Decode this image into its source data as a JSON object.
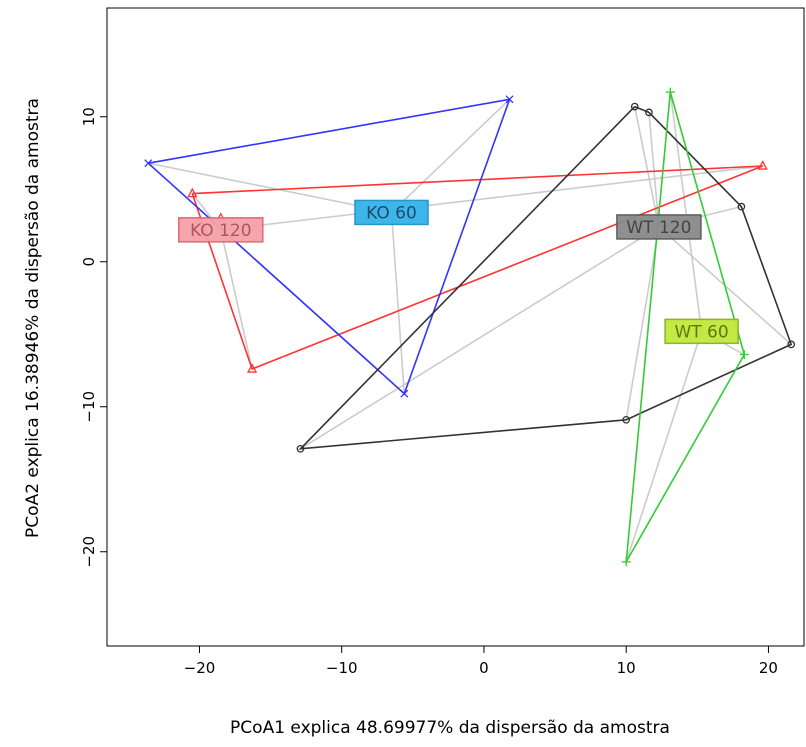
{
  "chart_data": {
    "type": "scatter",
    "title": "",
    "xlabel": "PCoA1 explica 48.69977% da dispersão da amostra",
    "ylabel": "PCoA2 explica 16.38946% da dispersão da amostra",
    "xlim": [
      -26.5,
      22.5
    ],
    "ylim": [
      -26.5,
      17.5
    ],
    "xticks": [
      -20,
      -10,
      0,
      10,
      20
    ],
    "yticks": [
      -20,
      -10,
      0,
      10
    ],
    "xtick_labels": [
      "−20",
      "−10",
      "0",
      "10",
      "20"
    ],
    "ytick_labels": [
      "−20",
      "−10",
      "0",
      "10"
    ],
    "grid": false,
    "series": [
      {
        "name": "KO 120",
        "color": "#ff3333",
        "marker": "triangle",
        "centroid": [
          -18.5,
          2.2
        ],
        "points": [
          [
            -20.5,
            4.7
          ],
          [
            -18.5,
            3.0
          ],
          [
            -16.3,
            -7.4
          ],
          [
            19.6,
            6.6
          ]
        ],
        "hull": [
          [
            -20.5,
            4.7
          ],
          [
            19.6,
            6.6
          ],
          [
            -16.3,
            -7.4
          ],
          [
            -20.5,
            4.7
          ]
        ],
        "label_fill": "#f4a2a8",
        "label_border": "#e06070",
        "label_text_color": "#b05560"
      },
      {
        "name": "KO 60",
        "color": "#3333ff",
        "marker": "x",
        "centroid": [
          -6.5,
          3.4
        ],
        "points": [
          [
            -23.6,
            6.8
          ],
          [
            1.8,
            11.2
          ],
          [
            -5.6,
            -9.1
          ]
        ],
        "hull": [
          [
            -23.6,
            6.8
          ],
          [
            1.8,
            11.2
          ],
          [
            -5.6,
            -9.1
          ],
          [
            -23.6,
            6.8
          ]
        ],
        "label_fill": "#33b4e8",
        "label_border": "#1a90c8",
        "label_text_color": "#1e4a70"
      },
      {
        "name": "WT 120",
        "color": "#333333",
        "marker": "circle",
        "centroid": [
          12.3,
          2.4
        ],
        "points": [
          [
            10.6,
            10.7
          ],
          [
            11.6,
            10.3
          ],
          [
            18.1,
            3.8
          ],
          [
            21.6,
            -5.7
          ],
          [
            10.0,
            -10.9
          ],
          [
            -12.9,
            -12.9
          ]
        ],
        "hull": [
          [
            10.6,
            10.7
          ],
          [
            11.6,
            10.3
          ],
          [
            18.1,
            3.8
          ],
          [
            21.6,
            -5.7
          ],
          [
            10.0,
            -10.9
          ],
          [
            -12.9,
            -12.9
          ],
          [
            10.6,
            10.7
          ]
        ],
        "label_fill": "#8a8a8a",
        "label_border": "#555555",
        "label_text_color": "#444444"
      },
      {
        "name": "WT 60",
        "color": "#33cc33",
        "marker": "plus",
        "centroid": [
          15.3,
          -4.8
        ],
        "points": [
          [
            13.1,
            11.7
          ],
          [
            18.3,
            -6.4
          ],
          [
            10.0,
            -20.7
          ]
        ],
        "hull": [
          [
            13.1,
            11.7
          ],
          [
            18.3,
            -6.4
          ],
          [
            10.0,
            -20.7
          ],
          [
            13.1,
            11.7
          ]
        ],
        "label_fill": "#c0e83c",
        "label_border": "#88b020",
        "label_text_color": "#5a7a10"
      }
    ],
    "spider_color": "#cccccc"
  }
}
